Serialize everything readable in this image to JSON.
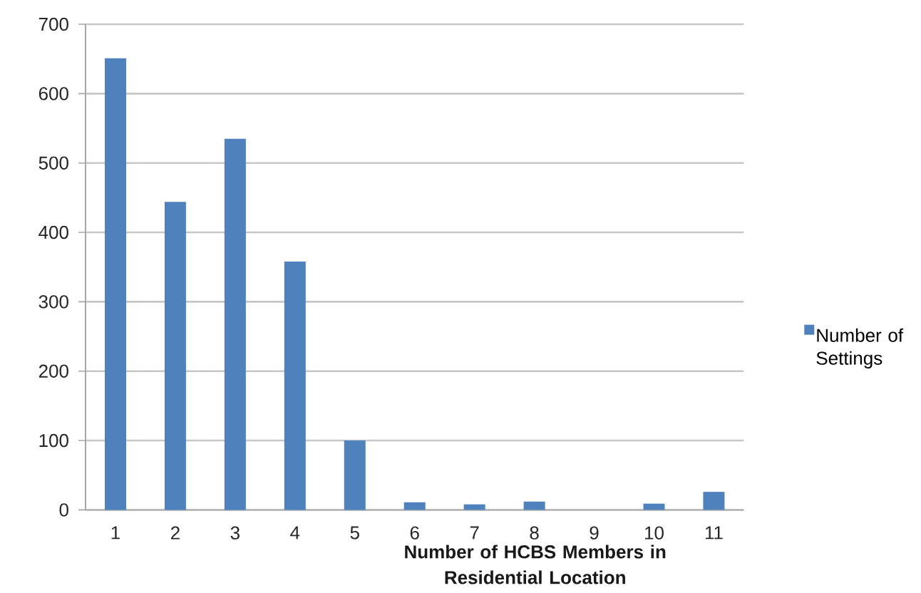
{
  "chart_data": {
    "type": "bar",
    "xlabel": "Number of HCBS Members in Residential Location",
    "categories": [
      "1",
      "2",
      "3",
      "4",
      "5",
      "6",
      "7",
      "8",
      "9",
      "10",
      "11"
    ],
    "series": [
      {
        "name": "Number of Settings",
        "color": "#4f81bd",
        "values": [
          651,
          444,
          535,
          358,
          100,
          11,
          8,
          12,
          0,
          9,
          26
        ]
      }
    ],
    "ylim": [
      0,
      700
    ],
    "yticks": [
      0,
      100,
      200,
      300,
      400,
      500,
      600,
      700
    ],
    "grid": "y",
    "legend": "right"
  }
}
